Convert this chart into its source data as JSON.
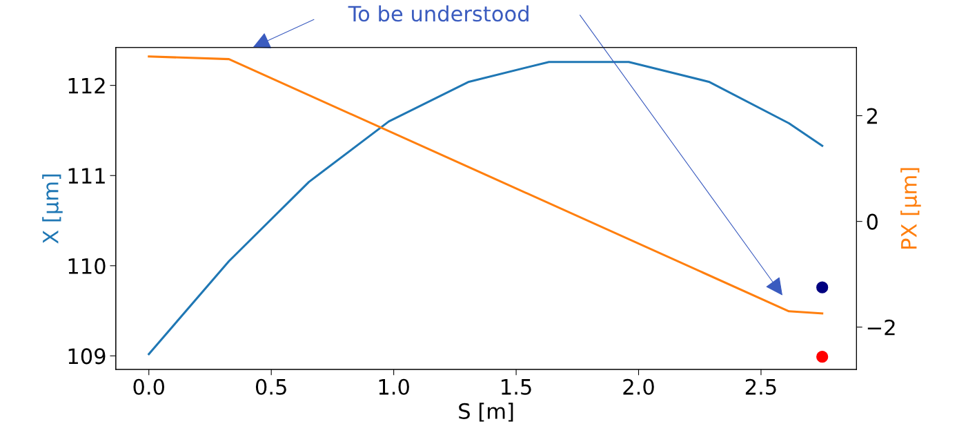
{
  "chart_data": {
    "type": "line",
    "xlabel": "S [m]",
    "ylabel": "X [µm]",
    "y2label": "PX [µm]",
    "x": [
      0,
      0.327,
      0.654,
      0.98,
      1.307,
      1.634,
      1.96,
      2.287,
      2.614,
      2.75
    ],
    "series": [
      {
        "color": "#1f77b4",
        "values": [
          109.02,
          110.05,
          110.93,
          111.6,
          112.04,
          112.26,
          112.26,
          112.04,
          111.58,
          111.33
        ]
      },
      {
        "color": "#ff7f0e",
        "axis": "y2",
        "x": [
          0,
          0.327,
          2.614,
          2.75
        ],
        "values": [
          3.12,
          3.07,
          -1.7,
          -1.74
        ]
      },
      {
        "type": "scatter",
        "marker": "circle",
        "color": "#000080",
        "x": [
          2.75
        ],
        "values": [
          109.76
        ]
      },
      {
        "type": "scatter",
        "marker": "circle",
        "color": "#ff0000",
        "x": [
          2.75
        ],
        "values": [
          108.99
        ]
      }
    ],
    "xlim": [
      -0.135,
      2.89
    ],
    "xticks": [
      {
        "value": 0,
        "label": "0.0"
      },
      0.5,
      {
        "value": 1,
        "label": "1.0"
      },
      1.5,
      {
        "value": 2,
        "label": "2.0"
      },
      2.5
    ],
    "ylim": [
      108.85,
      112.42
    ],
    "yticks": [
      109,
      110,
      111,
      112
    ],
    "y2lim": [
      -2.8,
      3.29
    ],
    "y2ticks": [
      {
        "value": -2,
        "label": "−2"
      },
      0,
      2
    ],
    "annotations": [
      "To be understood"
    ],
    "grid": false,
    "legend": false
  }
}
